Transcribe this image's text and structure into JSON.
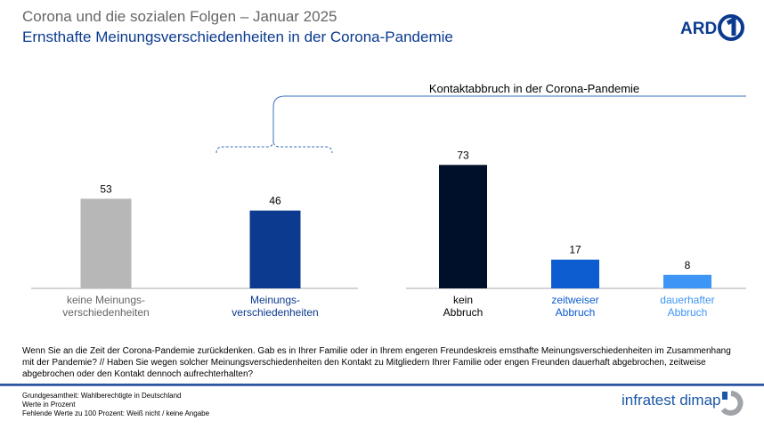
{
  "header": {
    "title": "Corona und die sozialen Folgen – Januar 2025",
    "subtitle": "Ernsthafte Meinungsverschiedenheiten in der Corona-Pandemie",
    "logo": "ARD 1"
  },
  "chart_data": {
    "type": "bar",
    "group_label": "Kontaktabbruch in der Corona-Pandemie",
    "ylim": [
      0,
      100
    ],
    "grid": false,
    "groups": [
      {
        "categories": [
          [
            "keine Meinungs-",
            "verschiedenheiten"
          ],
          [
            "Meinungs-",
            "verschiedenheiten"
          ]
        ],
        "values": [
          53,
          46
        ],
        "colors": [
          "#b7b7b7",
          "#0b3a8f"
        ],
        "label_colors": [
          "#666666",
          "#0b3a8f"
        ]
      },
      {
        "categories": [
          [
            "kein",
            "Abbruch"
          ],
          [
            "zeitweiser",
            "Abbruch"
          ],
          [
            "dauerhafter",
            "Abbruch"
          ]
        ],
        "values": [
          73,
          17,
          8
        ],
        "colors": [
          "#000f2a",
          "#0d5cd0",
          "#3d96f5"
        ],
        "label_colors": [
          "#000000",
          "#0d5cd0",
          "#3d96f5"
        ]
      }
    ]
  },
  "question": "Wenn Sie an die Zeit der Corona-Pandemie zurückdenken. Gab es in Ihrer Familie oder in Ihrem engeren Freundeskreis ernsthafte Meinungsverschiedenheiten im Zusammenhang mit der Pandemie? // Haben Sie wegen solcher Meinungsverschiedenheiten den Kontakt zu Mitgliedern Ihrer Familie oder engen Freunden dauerhaft abgebrochen, zeitweise abgebrochen oder den Kontakt dennoch aufrechterhalten?",
  "footer": {
    "lines": [
      "Grundgesamtheit: Wahlberechtigte in Deutschland",
      "Werte in Prozent",
      "Fehlende Werte zu 100 Prozent: Weiß nicht / keine Angabe"
    ],
    "brand": "infratest dimap"
  }
}
